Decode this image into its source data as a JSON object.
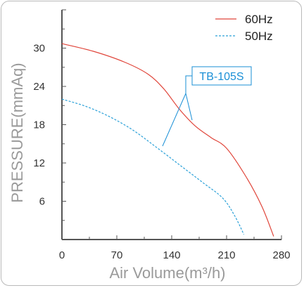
{
  "chart_data": {
    "type": "line",
    "xlabel": "Air Volume(m³/h)",
    "ylabel": "PRESSURE(mmAq)",
    "xlim": [
      0,
      280
    ],
    "ylim": [
      0,
      36
    ],
    "x_ticks": [
      0,
      70,
      140,
      210,
      280
    ],
    "y_ticks": [
      6,
      12,
      18,
      24,
      30
    ],
    "grid": false,
    "legend_position": "top-right",
    "series": [
      {
        "name": "60Hz",
        "color": "#e0453a",
        "style": "solid",
        "x": [
          0,
          40,
          80,
          110,
          130,
          150,
          170,
          190,
          210,
          235,
          255,
          270
        ],
        "y": [
          30.7,
          29.5,
          27.8,
          25.9,
          23.6,
          20.4,
          17.8,
          16.0,
          14.3,
          9.8,
          5.2,
          0.5
        ]
      },
      {
        "name": "50Hz",
        "color": "#2aa0d8",
        "style": "dashed",
        "x": [
          0,
          30,
          60,
          90,
          120,
          150,
          180,
          205,
          220,
          232
        ],
        "y": [
          22.0,
          20.9,
          19.3,
          17.2,
          14.5,
          11.7,
          8.9,
          6.5,
          3.8,
          0.8
        ]
      }
    ],
    "annotation": {
      "label": "TB-105S",
      "color": "#1a8fd6"
    }
  }
}
